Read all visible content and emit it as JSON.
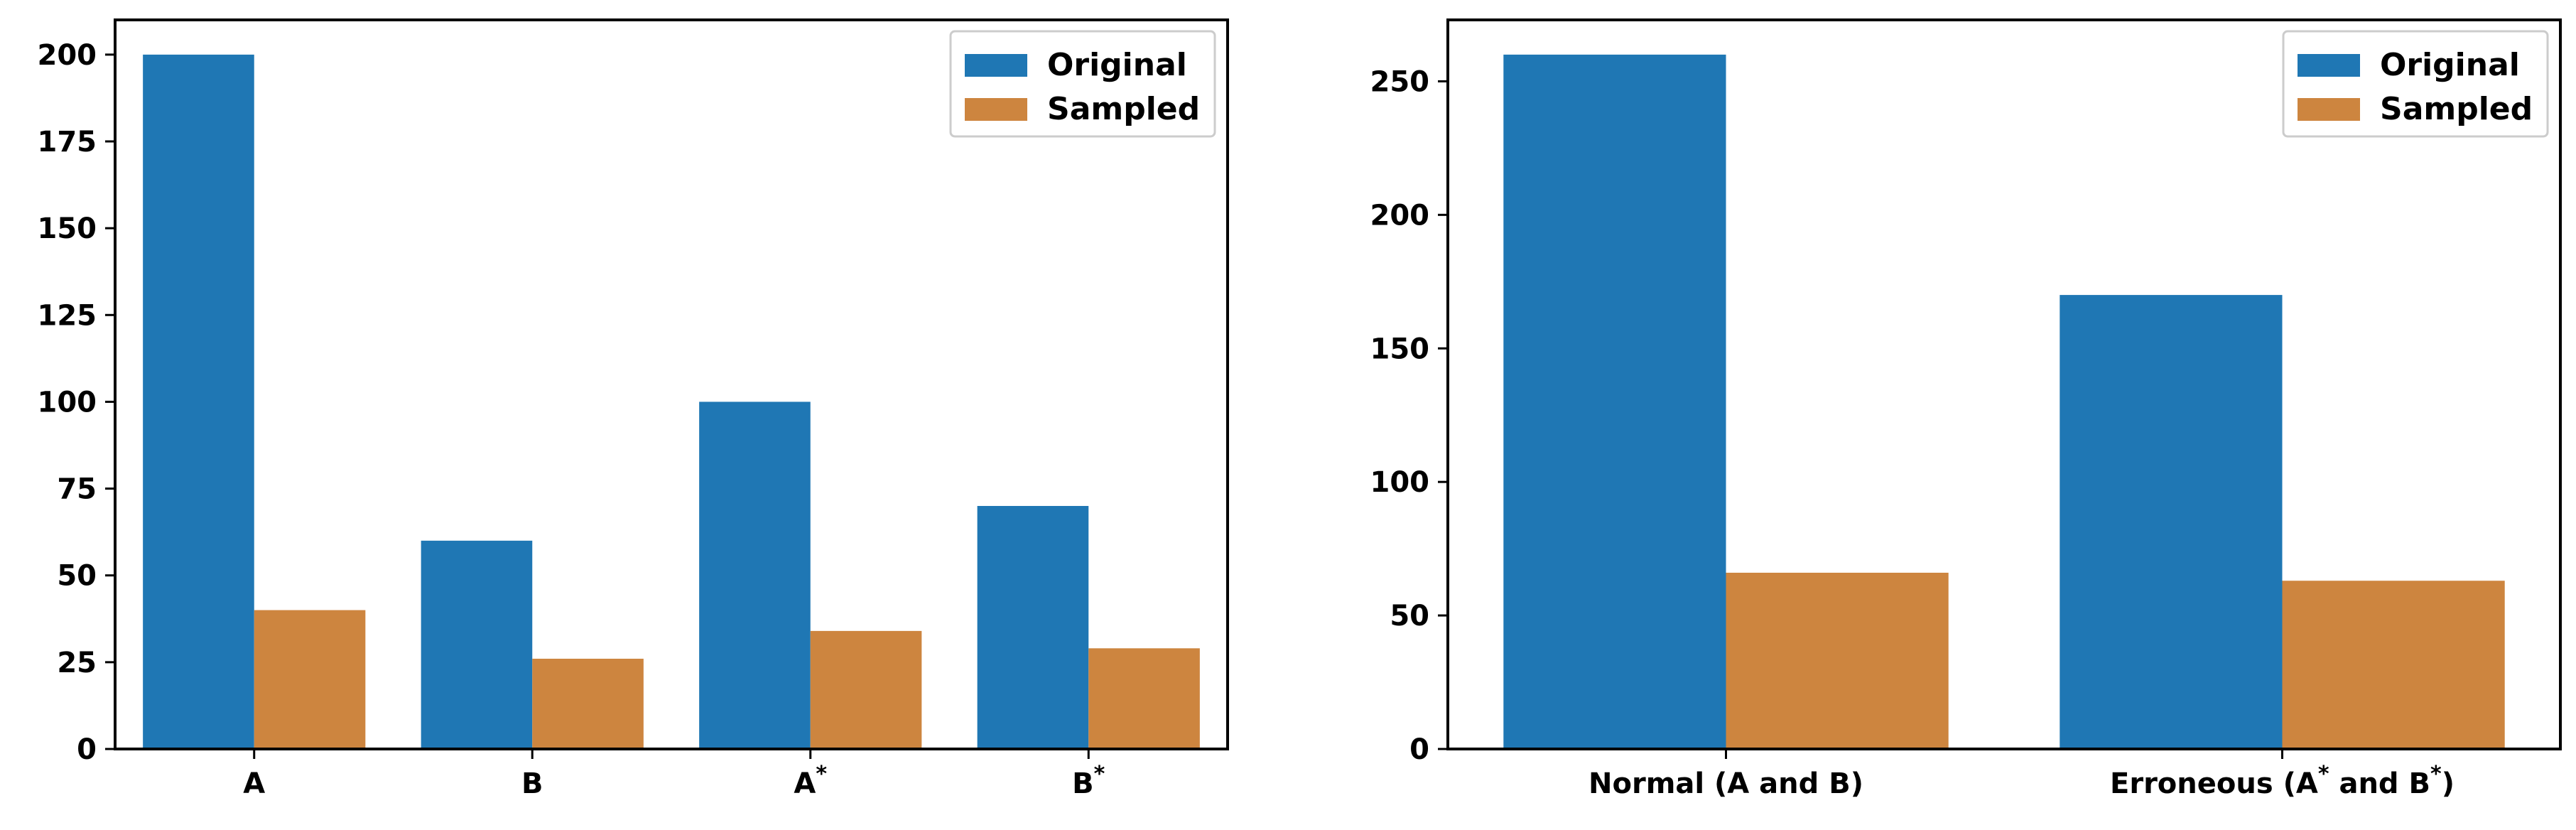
{
  "colors": {
    "original": "#1f77b4",
    "sampled": "#cd853f",
    "axis": "#000000"
  },
  "chart_data": [
    {
      "type": "bar",
      "categories": [
        "A",
        "B",
        "A*",
        "B*"
      ],
      "series": [
        {
          "name": "Original",
          "values": [
            200,
            60,
            100,
            70
          ]
        },
        {
          "name": "Sampled",
          "values": [
            40,
            26,
            34,
            29
          ]
        }
      ],
      "ylim": [
        0,
        210
      ],
      "yticks": [
        0,
        25,
        50,
        75,
        100,
        125,
        150,
        175,
        200
      ],
      "legend": "top-right",
      "grid": false
    },
    {
      "type": "bar",
      "categories": [
        "Normal (A and B)",
        "Erroneous (A* and B*)"
      ],
      "series": [
        {
          "name": "Original",
          "values": [
            260,
            170
          ]
        },
        {
          "name": "Sampled",
          "values": [
            66,
            63
          ]
        }
      ],
      "ylim": [
        0,
        273
      ],
      "yticks": [
        0,
        50,
        100,
        150,
        200,
        250
      ],
      "legend": "top-right",
      "grid": false
    }
  ]
}
